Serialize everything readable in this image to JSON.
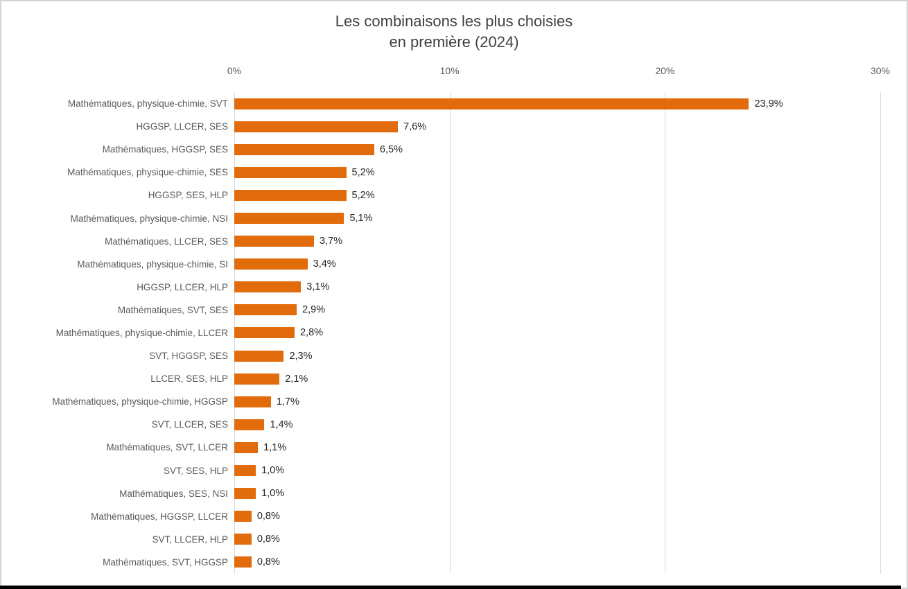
{
  "chart": {
    "title_line1": "Les combinaisons les plus choisies",
    "title_line2": "en première (2024)"
  },
  "chart_data": {
    "type": "bar",
    "orientation": "horizontal",
    "title": "Les combinaisons les plus choisies en première (2024)",
    "categories": [
      "Mathématiques, physique-chimie, SVT",
      "HGGSP, LLCER, SES",
      "Mathématiques, HGGSP, SES",
      "Mathématiques, physique-chimie, SES",
      "HGGSP, SES, HLP",
      "Mathématiques, physique-chimie, NSI",
      "Mathématiques, LLCER, SES",
      "Mathématiques, physique-chimie, SI",
      "HGGSP, LLCER, HLP",
      "Mathématiques, SVT, SES",
      "Mathématiques, physique-chimie, LLCER",
      "SVT, HGGSP, SES",
      "LLCER, SES, HLP",
      "Mathématiques, physique-chimie, HGGSP",
      "SVT, LLCER, SES",
      "Mathématiques, SVT, LLCER",
      "SVT, SES, HLP",
      "Mathématiques, SES, NSI",
      "Mathématiques, HGGSP, LLCER",
      "SVT, LLCER, HLP",
      "Mathématiques, SVT, HGGSP"
    ],
    "values": [
      23.9,
      7.6,
      6.5,
      5.2,
      5.2,
      5.1,
      3.7,
      3.4,
      3.1,
      2.9,
      2.8,
      2.3,
      2.1,
      1.7,
      1.4,
      1.1,
      1.0,
      1.0,
      0.8,
      0.8,
      0.8
    ],
    "value_labels": [
      "23,9%",
      "7,6%",
      "6,5%",
      "5,2%",
      "5,2%",
      "5,1%",
      "3,7%",
      "3,4%",
      "3,1%",
      "2,9%",
      "2,8%",
      "2,3%",
      "2,1%",
      "1,7%",
      "1,4%",
      "1,1%",
      "1,0%",
      "1,0%",
      "0,8%",
      "0,8%",
      "0,8%"
    ],
    "xlabel": "",
    "ylabel": "",
    "xlim": [
      0,
      30
    ],
    "x_ticks": [
      "0%",
      "10%",
      "20%",
      "30%"
    ],
    "x_tick_values": [
      0,
      10,
      20,
      30
    ],
    "grid": true,
    "legend": false,
    "bar_color": "#E26B0C",
    "gridline_color": "#D9D9D9",
    "tick_label_color": "#595959",
    "category_label_color": "#595959",
    "value_label_color": "#262626",
    "title_color": "#404040"
  }
}
